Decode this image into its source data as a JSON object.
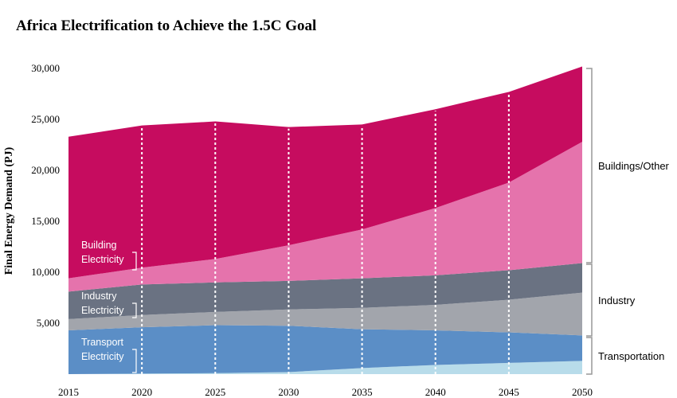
{
  "chart_data": {
    "type": "area",
    "title": "Africa Electrification to Achieve the 1.5C Goal",
    "ylabel": "Final Energy Demand (PJ)",
    "xlabel": "",
    "x": [
      2015,
      2020,
      2025,
      2030,
      2035,
      2040,
      2045,
      2050
    ],
    "ylim": [
      0,
      30000
    ],
    "yticks": [
      5000,
      10000,
      15000,
      20000,
      25000,
      30000
    ],
    "ytick_labels": [
      "5,000",
      "10,000",
      "15,000",
      "20,000",
      "25,000",
      "30,000"
    ],
    "grid": "vertical dotted lines at each year",
    "stacked": true,
    "series": [
      {
        "key": "transport_electricity",
        "values": [
          0,
          50,
          100,
          200,
          600,
          900,
          1100,
          1300
        ],
        "color": "#b8dcea"
      },
      {
        "key": "transport_other",
        "values": [
          4300,
          4550,
          4700,
          4550,
          3800,
          3400,
          3000,
          2500
        ],
        "color": "#5b8ec6"
      },
      {
        "key": "industry_electricity",
        "values": [
          1100,
          1200,
          1300,
          1600,
          2100,
          2500,
          3200,
          4200
        ],
        "color": "#a2a5ac"
      },
      {
        "key": "industry_other",
        "values": [
          2700,
          3000,
          2900,
          2800,
          2900,
          2900,
          2900,
          2900
        ],
        "color": "#6a7282"
      },
      {
        "key": "building_electricity",
        "values": [
          1300,
          1650,
          2300,
          3500,
          4800,
          6600,
          8600,
          11900
        ],
        "color": "#e573ac"
      },
      {
        "key": "building_other",
        "values": [
          13900,
          13950,
          13500,
          11600,
          10300,
          9700,
          8900,
          7400
        ],
        "color": "#c60c5f"
      }
    ],
    "inline_labels": [
      {
        "lines": [
          "Building",
          "Electricity"
        ]
      },
      {
        "lines": [
          "Industry",
          "Electricity"
        ]
      },
      {
        "lines": [
          "Transport",
          "Electricity"
        ]
      }
    ],
    "group_labels": [
      "Buildings/Other",
      "Industry",
      "Transportation"
    ]
  }
}
